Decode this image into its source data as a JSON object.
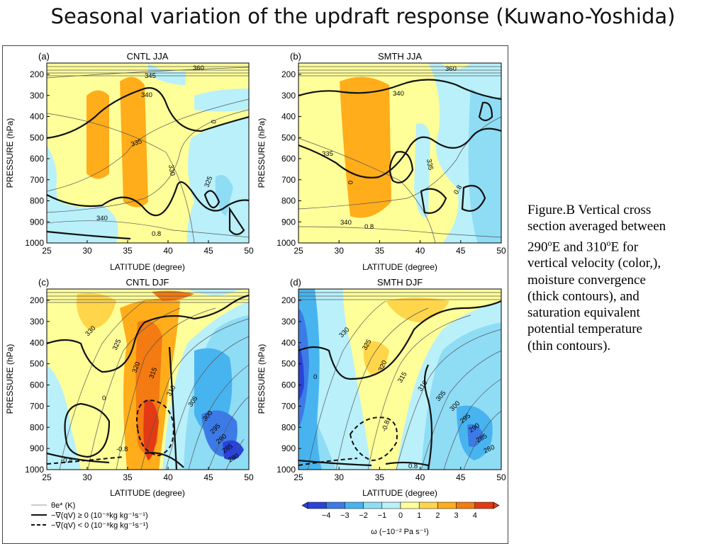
{
  "slide": {
    "title": "Seasonal variation of the updraft response (Kuwano-Yoshida)"
  },
  "caption": {
    "line1": "Figure.B Vertical cross",
    "line2": "section averaged between",
    "line3_a": "290",
    "line3_sup1": "o",
    "line3_b": "E and 310",
    "line3_sup2": "o",
    "line3_c": "E for",
    "line4": "vertical velocity (color,),",
    "line5": "moisture convergence",
    "line6": "(thick contours), and",
    "line7": "saturation equivalent",
    "line8": "potential temperature",
    "line9": "(thin contours)."
  },
  "figure": {
    "panels": [
      {
        "tag": "(a)",
        "title": "CNTL JJA"
      },
      {
        "tag": "(b)",
        "title": "SMTH JJA"
      },
      {
        "tag": "(c)",
        "title": "CNTL DJF"
      },
      {
        "tag": "(d)",
        "title": "SMTH DJF"
      }
    ],
    "y_axis_label": "PRESSURE (hPa)",
    "x_axis_label": "LATITUDE (degree)",
    "y_ticks": [
      "200",
      "300",
      "400",
      "500",
      "600",
      "700",
      "800",
      "900",
      "1000"
    ],
    "x_ticks": [
      "25",
      "30",
      "35",
      "40",
      "45",
      "50"
    ],
    "legend": {
      "theta_label": "θe* (K)",
      "solid_label": "−∇(qV) ≥ 0 (10⁻⁸kg kg⁻¹s⁻¹)",
      "dashed_label": "−∇(qV) < 0 (10⁻⁸kg kg⁻¹s⁻¹)"
    },
    "colorbar": {
      "ticks": [
        "−4",
        "−3",
        "−2",
        "−1",
        "0",
        "1",
        "2",
        "3",
        "4"
      ],
      "label": "ω (−10⁻² Pa s⁻¹)",
      "colors": [
        "#2a43d8",
        "#3c7be6",
        "#47b4f0",
        "#8fdcf5",
        "#b9f0fa",
        "#ffff99",
        "#ffd54a",
        "#ffad1a",
        "#f47a12",
        "#e23a14"
      ]
    },
    "contour_labels": {
      "a": [
        "340",
        "335",
        "330",
        "325",
        "340",
        "360",
        "345",
        "0",
        "0.8"
      ],
      "b": [
        "340",
        "335",
        "335",
        "0.8",
        "0",
        "340",
        "360",
        "0.8"
      ],
      "c": [
        "330",
        "325",
        "320",
        "315",
        "310",
        "305",
        "300",
        "295",
        "290",
        "285",
        "280",
        "0",
        "-0.8",
        "-0.8"
      ],
      "d": [
        "330",
        "325",
        "320",
        "315",
        "310",
        "305",
        "300",
        "295",
        "290",
        "285",
        "280",
        "-0.8",
        "0",
        "0.8"
      ]
    }
  },
  "colors": {
    "blue_dark": "#2a43d8",
    "cyan": "#8fdcf5",
    "yellow": "#ffff99",
    "orange": "#ffad1a",
    "red": "#e23a14"
  }
}
